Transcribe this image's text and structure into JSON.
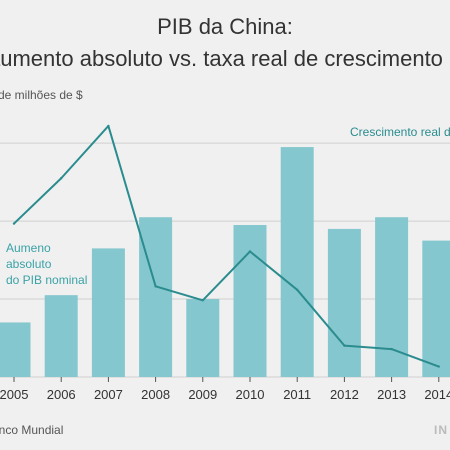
{
  "header": {
    "title_line1": "PIB da China:",
    "title_line2": "aumento absoluto vs. taxa real de crescimento",
    "ylabel": "de milhões de $"
  },
  "annotations": {
    "line_label": "Crescimento real do",
    "bar_label_lines": [
      "Aumeno",
      "absoluto",
      "do PIB nominal"
    ]
  },
  "footer": {
    "source": "anco Mundial",
    "logo": "IN"
  },
  "colors": {
    "bar": "#85c7ce",
    "line": "#2a8c8e",
    "background": "#f0f0f0"
  },
  "chart_data": {
    "type": "bar",
    "categories": [
      "2005",
      "2006",
      "2007",
      "2008",
      "2009",
      "2010",
      "2011",
      "2012",
      "2013",
      "2014"
    ],
    "series": [
      {
        "name": "Aumeno absoluto do PIB nominal",
        "type": "bar",
        "values": [
          0.7,
          1.05,
          1.65,
          2.05,
          1.0,
          1.95,
          2.95,
          1.9,
          2.05,
          1.75
        ]
      },
      {
        "name": "Crescimento real do",
        "type": "line",
        "values": [
          11.4,
          12.7,
          14.2,
          9.6,
          9.2,
          10.6,
          9.5,
          7.9,
          7.8,
          7.3
        ]
      }
    ],
    "bar_ylim": [
      0,
      3.4
    ],
    "line_ylim": [
      7.0,
      14.6
    ],
    "grid": true
  }
}
